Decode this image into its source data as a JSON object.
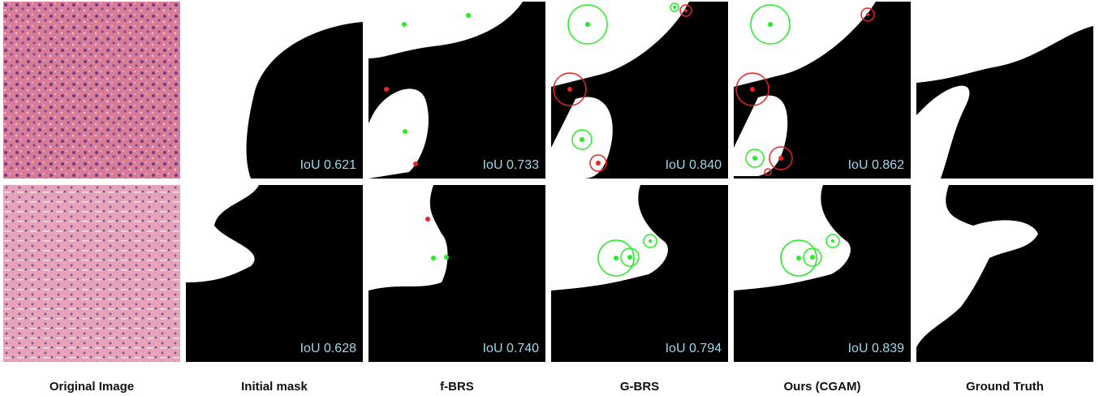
{
  "columns": [
    "Original Image",
    "Initial mask",
    "f-BRS",
    "G-BRS",
    "Ours (CGAM)",
    "Ground Truth"
  ],
  "rows": [
    {
      "iou_labels": [
        "IoU 0.621",
        "IoU 0.733",
        "IoU 0.840",
        "IoU 0.862"
      ]
    },
    {
      "iou_labels": [
        "IoU 0.628",
        "IoU 0.740",
        "IoU 0.794",
        "IoU 0.839"
      ]
    }
  ]
}
